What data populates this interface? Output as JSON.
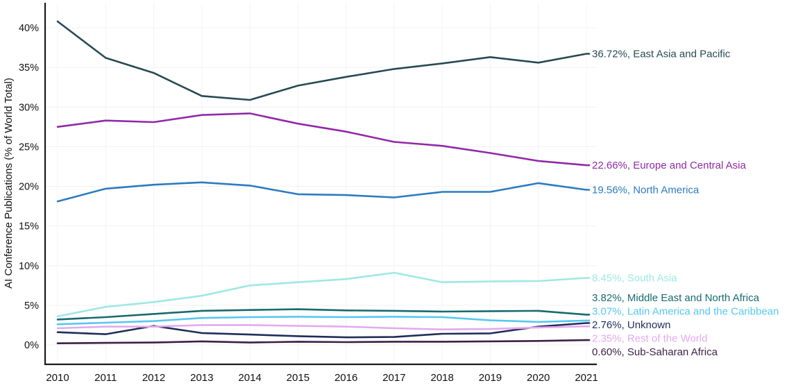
{
  "chart_data": {
    "type": "line",
    "title": "",
    "xlabel": "",
    "ylabel": "AI Conference Publications (% of World Total)",
    "x": [
      2010,
      2011,
      2012,
      2013,
      2014,
      2015,
      2016,
      2017,
      2018,
      2019,
      2020,
      2021
    ],
    "ylim": [
      0,
      42
    ],
    "yticks": [
      0,
      5,
      10,
      15,
      20,
      25,
      30,
      35,
      40
    ],
    "ytick_suffix": "%",
    "grid": true,
    "legend_position": "right-of-line-ends",
    "axis_color": "#1a1a1a",
    "grid_color": "#f0f0f0",
    "text_color": "#111111",
    "series": [
      {
        "name": "East Asia and Pacific",
        "end_label": "36.72%, East Asia and Pacific",
        "color": "#274a53",
        "values": [
          40.8,
          36.2,
          34.3,
          31.4,
          30.9,
          32.7,
          33.8,
          34.8,
          35.5,
          36.3,
          35.6,
          36.72
        ]
      },
      {
        "name": "Europe and Central Asia",
        "end_label": "22.66%, Europe and Central Asia",
        "color": "#9129a8",
        "values": [
          27.5,
          28.3,
          28.1,
          29.0,
          29.2,
          27.9,
          26.9,
          25.6,
          25.1,
          24.2,
          23.2,
          22.66
        ]
      },
      {
        "name": "North America",
        "end_label": "19.56%, North America",
        "color": "#2c7bc0",
        "values": [
          18.1,
          19.7,
          20.2,
          20.5,
          20.1,
          19.0,
          18.9,
          18.6,
          19.3,
          19.3,
          20.4,
          19.56
        ]
      },
      {
        "name": "South Asia",
        "end_label": "8.45%, South Asia",
        "color": "#9ee8e3",
        "values": [
          3.6,
          4.8,
          5.4,
          6.2,
          7.5,
          7.9,
          8.3,
          9.1,
          7.9,
          8.0,
          8.05,
          8.45
        ]
      },
      {
        "name": "Middle East and North Africa",
        "end_label": "3.82%, Middle East and North Africa",
        "color": "#166a6e",
        "values": [
          3.2,
          3.5,
          3.9,
          4.3,
          4.4,
          4.5,
          4.35,
          4.3,
          4.2,
          4.25,
          4.3,
          3.82
        ]
      },
      {
        "name": "Latin America and the Caribbean",
        "end_label": "3.07%, Latin America and the Caribbean",
        "color": "#56c7f0",
        "values": [
          2.6,
          2.8,
          3.0,
          3.4,
          3.5,
          3.55,
          3.5,
          3.55,
          3.5,
          3.1,
          2.9,
          3.07
        ]
      },
      {
        "name": "Unknown",
        "end_label": "2.76%, Unknown",
        "color": "#1f2d5a",
        "values": [
          1.6,
          1.35,
          2.4,
          1.5,
          1.3,
          1.1,
          0.95,
          1.0,
          1.4,
          1.45,
          2.3,
          2.76
        ]
      },
      {
        "name": "Rest of the World",
        "end_label": "2.35%, Rest of the World",
        "color": "#e4a9ee",
        "values": [
          2.1,
          2.3,
          2.3,
          2.5,
          2.5,
          2.4,
          2.3,
          2.1,
          1.95,
          2.0,
          2.2,
          2.35
        ]
      },
      {
        "name": "Sub-Saharan Africa",
        "end_label": "0.60%, Sub-Saharan Africa",
        "color": "#3c1f45",
        "values": [
          0.2,
          0.25,
          0.3,
          0.45,
          0.3,
          0.4,
          0.35,
          0.4,
          0.4,
          0.45,
          0.5,
          0.6
        ]
      }
    ]
  }
}
